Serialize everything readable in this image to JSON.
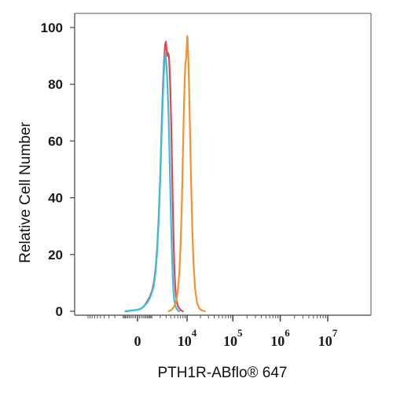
{
  "chart_data": {
    "type": "line",
    "title": "",
    "xlabel": "PTH1R-ABflo® 647",
    "ylabel": "Relative Cell Number",
    "ylim": [
      0,
      100
    ],
    "yticks": [
      0,
      20,
      40,
      60,
      80,
      100
    ],
    "xscale": "biexponential",
    "xticks": [
      {
        "value": 0,
        "base": "0",
        "exp": ""
      },
      {
        "value": 10000,
        "base": "10",
        "exp": "4"
      },
      {
        "value": 100000,
        "base": "10",
        "exp": "5"
      },
      {
        "value": 1000000,
        "base": "10",
        "exp": "6"
      },
      {
        "value": 10000000,
        "base": "10",
        "exp": "7"
      }
    ],
    "grid": false,
    "legend": "none",
    "series": [
      {
        "color": "#e8434a",
        "points": [
          [
            -800,
            0
          ],
          [
            0,
            0.5
          ],
          [
            200,
            1
          ],
          [
            400,
            2
          ],
          [
            600,
            3.5
          ],
          [
            800,
            5
          ],
          [
            1000,
            7
          ],
          [
            1200,
            10
          ],
          [
            1400,
            15
          ],
          [
            1600,
            23
          ],
          [
            1800,
            34
          ],
          [
            2000,
            48
          ],
          [
            2200,
            64
          ],
          [
            2400,
            78
          ],
          [
            2600,
            88
          ],
          [
            2800,
            94
          ],
          [
            2950,
            95
          ],
          [
            3100,
            92
          ],
          [
            3250,
            90
          ],
          [
            3400,
            91
          ],
          [
            3550,
            90
          ],
          [
            3700,
            86
          ],
          [
            3900,
            78
          ],
          [
            4100,
            66
          ],
          [
            4300,
            52
          ],
          [
            4500,
            38
          ],
          [
            4700,
            26
          ],
          [
            4900,
            17
          ],
          [
            5100,
            11
          ],
          [
            5300,
            7
          ],
          [
            5600,
            4
          ],
          [
            6000,
            2
          ],
          [
            6500,
            1
          ],
          [
            7200,
            0.3
          ],
          [
            8000,
            0
          ]
        ]
      },
      {
        "color": "#35bfe0",
        "points": [
          [
            -800,
            0
          ],
          [
            0,
            0.5
          ],
          [
            200,
            1
          ],
          [
            400,
            2
          ],
          [
            600,
            3
          ],
          [
            800,
            4.5
          ],
          [
            1000,
            6.5
          ],
          [
            1200,
            9
          ],
          [
            1400,
            14
          ],
          [
            1600,
            22
          ],
          [
            1800,
            33
          ],
          [
            2000,
            47
          ],
          [
            2200,
            62
          ],
          [
            2400,
            75
          ],
          [
            2600,
            85
          ],
          [
            2750,
            90
          ],
          [
            2850,
            91
          ],
          [
            3000,
            88
          ],
          [
            3150,
            84
          ],
          [
            3300,
            78
          ],
          [
            3500,
            68
          ],
          [
            3700,
            55
          ],
          [
            3900,
            42
          ],
          [
            4100,
            30
          ],
          [
            4300,
            20
          ],
          [
            4500,
            12
          ],
          [
            4700,
            7
          ],
          [
            4900,
            4
          ],
          [
            5200,
            2
          ],
          [
            5600,
            1
          ],
          [
            6000,
            0.3
          ],
          [
            6500,
            0
          ]
        ]
      },
      {
        "color": "#f5922f",
        "points": [
          [
            3500,
            0
          ],
          [
            4200,
            0.5
          ],
          [
            4800,
            1.5
          ],
          [
            5400,
            3
          ],
          [
            6000,
            7
          ],
          [
            6600,
            14
          ],
          [
            7100,
            25
          ],
          [
            7600,
            40
          ],
          [
            8000,
            56
          ],
          [
            8400,
            70
          ],
          [
            8800,
            81
          ],
          [
            9100,
            87
          ],
          [
            9300,
            88
          ],
          [
            9500,
            89
          ],
          [
            9700,
            91
          ],
          [
            9900,
            94
          ],
          [
            10100,
            97
          ],
          [
            10300,
            96
          ],
          [
            10600,
            91
          ],
          [
            11000,
            82
          ],
          [
            11600,
            66
          ],
          [
            12300,
            47
          ],
          [
            13100,
            30
          ],
          [
            14000,
            17
          ],
          [
            15200,
            8
          ],
          [
            16800,
            3
          ],
          [
            18800,
            1
          ],
          [
            21500,
            0.3
          ],
          [
            25000,
            0
          ]
        ]
      }
    ]
  }
}
